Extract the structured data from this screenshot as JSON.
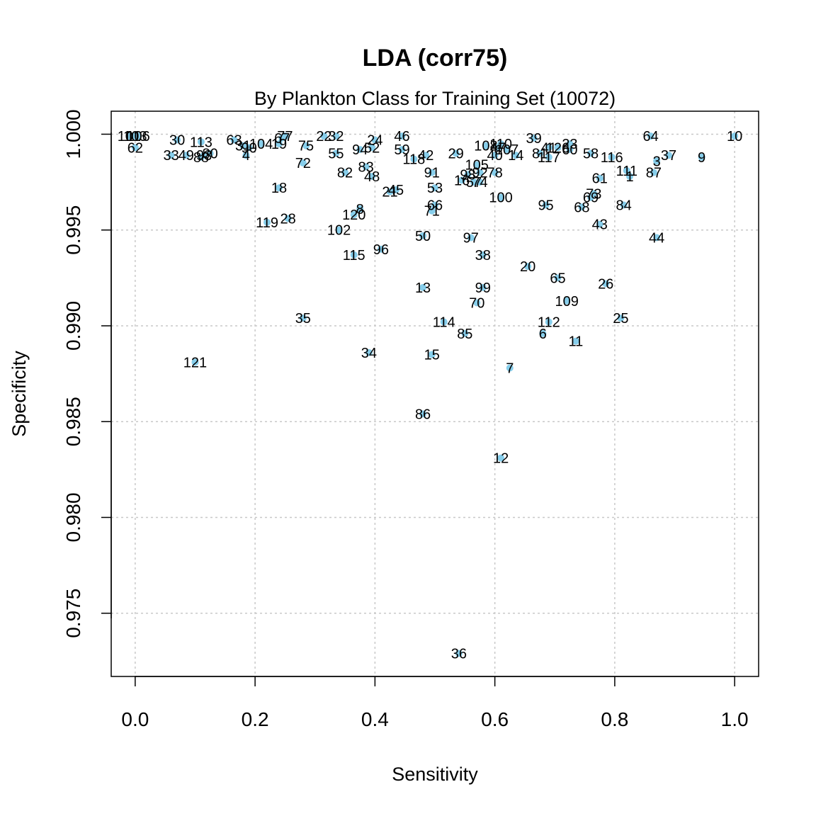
{
  "chart_data": {
    "type": "scatter",
    "title": "LDA (corr75)",
    "subtitle": "By Plankton Class for Training Set (10072)",
    "xlabel": "Sensitivity",
    "ylabel": "Specificity",
    "xlim": [
      -0.04,
      1.04
    ],
    "ylim": [
      0.9717,
      1.0012
    ],
    "xticks": [
      "0.0",
      "0.2",
      "0.4",
      "0.6",
      "0.8",
      "1.0"
    ],
    "xtick_values": [
      0.0,
      0.2,
      0.4,
      0.6,
      0.8,
      1.0
    ],
    "yticks": [
      "0.975",
      "0.980",
      "0.985",
      "0.990",
      "0.995",
      "1.000"
    ],
    "ytick_values": [
      0.975,
      0.98,
      0.985,
      0.99,
      0.995,
      1.0
    ],
    "grid": true,
    "marker_color": "#87CEEB",
    "points": [
      {
        "label": "10",
        "x": 1.0,
        "y": 0.9999
      },
      {
        "label": "9",
        "x": 0.945,
        "y": 0.9988
      },
      {
        "label": "37",
        "x": 0.89,
        "y": 0.9989
      },
      {
        "label": "3",
        "x": 0.87,
        "y": 0.9986
      },
      {
        "label": "64",
        "x": 0.86,
        "y": 0.9999
      },
      {
        "label": "87",
        "x": 0.865,
        "y": 0.998
      },
      {
        "label": "1",
        "x": 0.825,
        "y": 0.9978
      },
      {
        "label": "111",
        "x": 0.82,
        "y": 0.9981
      },
      {
        "label": "116",
        "x": 0.795,
        "y": 0.9988
      },
      {
        "label": "61",
        "x": 0.775,
        "y": 0.9977
      },
      {
        "label": "84",
        "x": 0.815,
        "y": 0.9963
      },
      {
        "label": "44",
        "x": 0.87,
        "y": 0.9946
      },
      {
        "label": "43",
        "x": 0.775,
        "y": 0.9953
      },
      {
        "label": "73",
        "x": 0.765,
        "y": 0.9969
      },
      {
        "label": "69",
        "x": 0.76,
        "y": 0.9967
      },
      {
        "label": "68",
        "x": 0.745,
        "y": 0.9962
      },
      {
        "label": "58",
        "x": 0.76,
        "y": 0.999
      },
      {
        "label": "23",
        "x": 0.725,
        "y": 0.9995
      },
      {
        "label": "60",
        "x": 0.725,
        "y": 0.9992
      },
      {
        "label": "126",
        "x": 0.705,
        "y": 0.9993
      },
      {
        "label": "41",
        "x": 0.69,
        "y": 0.9993
      },
      {
        "label": "117",
        "x": 0.69,
        "y": 0.9988
      },
      {
        "label": "81",
        "x": 0.675,
        "y": 0.999
      },
      {
        "label": "39",
        "x": 0.665,
        "y": 0.9998
      },
      {
        "label": "95",
        "x": 0.685,
        "y": 0.9963
      },
      {
        "label": "65",
        "x": 0.705,
        "y": 0.9925
      },
      {
        "label": "26",
        "x": 0.785,
        "y": 0.9922
      },
      {
        "label": "109",
        "x": 0.72,
        "y": 0.9913
      },
      {
        "label": "25",
        "x": 0.81,
        "y": 0.9904
      },
      {
        "label": "112",
        "x": 0.69,
        "y": 0.9902
      },
      {
        "label": "6",
        "x": 0.68,
        "y": 0.9896
      },
      {
        "label": "11",
        "x": 0.735,
        "y": 0.9892
      },
      {
        "label": "20",
        "x": 0.655,
        "y": 0.9931
      },
      {
        "label": "7",
        "x": 0.625,
        "y": 0.9878
      },
      {
        "label": "12",
        "x": 0.61,
        "y": 0.9831
      },
      {
        "label": "110",
        "x": 0.61,
        "y": 0.9995
      },
      {
        "label": "108",
        "x": 0.585,
        "y": 0.9994
      },
      {
        "label": "47",
        "x": 0.605,
        "y": 0.9993
      },
      {
        "label": "107",
        "x": 0.62,
        "y": 0.9992
      },
      {
        "label": "14",
        "x": 0.635,
        "y": 0.9989
      },
      {
        "label": "40",
        "x": 0.6,
        "y": 0.9989
      },
      {
        "label": "105",
        "x": 0.57,
        "y": 0.9984
      },
      {
        "label": "78",
        "x": 0.6,
        "y": 0.998
      },
      {
        "label": "92",
        "x": 0.575,
        "y": 0.998
      },
      {
        "label": "98",
        "x": 0.555,
        "y": 0.9979
      },
      {
        "label": "57",
        "x": 0.565,
        "y": 0.9975
      },
      {
        "label": "74",
        "x": 0.575,
        "y": 0.9975
      },
      {
        "label": "16",
        "x": 0.545,
        "y": 0.9976
      },
      {
        "label": "100",
        "x": 0.61,
        "y": 0.9967
      },
      {
        "label": "29",
        "x": 0.535,
        "y": 0.999
      },
      {
        "label": "97",
        "x": 0.56,
        "y": 0.9946
      },
      {
        "label": "38",
        "x": 0.58,
        "y": 0.9937
      },
      {
        "label": "99",
        "x": 0.58,
        "y": 0.992
      },
      {
        "label": "70",
        "x": 0.57,
        "y": 0.9912
      },
      {
        "label": "114",
        "x": 0.515,
        "y": 0.9902
      },
      {
        "label": "85",
        "x": 0.55,
        "y": 0.9896
      },
      {
        "label": "36",
        "x": 0.54,
        "y": 0.9729
      },
      {
        "label": "46",
        "x": 0.445,
        "y": 0.9999
      },
      {
        "label": "24",
        "x": 0.4,
        "y": 0.9997
      },
      {
        "label": "52",
        "x": 0.395,
        "y": 0.9993
      },
      {
        "label": "94",
        "x": 0.375,
        "y": 0.9992
      },
      {
        "label": "59",
        "x": 0.445,
        "y": 0.9992
      },
      {
        "label": "42",
        "x": 0.485,
        "y": 0.9989
      },
      {
        "label": "118",
        "x": 0.465,
        "y": 0.9987
      },
      {
        "label": "91",
        "x": 0.495,
        "y": 0.998
      },
      {
        "label": "53",
        "x": 0.5,
        "y": 0.9972
      },
      {
        "label": "66",
        "x": 0.5,
        "y": 0.9963
      },
      {
        "label": "71",
        "x": 0.495,
        "y": 0.996
      },
      {
        "label": "48",
        "x": 0.395,
        "y": 0.9978
      },
      {
        "label": "83",
        "x": 0.385,
        "y": 0.9983
      },
      {
        "label": "21",
        "x": 0.425,
        "y": 0.997
      },
      {
        "label": "45",
        "x": 0.435,
        "y": 0.9971
      },
      {
        "label": "8",
        "x": 0.375,
        "y": 0.9961
      },
      {
        "label": "120",
        "x": 0.365,
        "y": 0.9958
      },
      {
        "label": "50",
        "x": 0.48,
        "y": 0.9947
      },
      {
        "label": "96",
        "x": 0.41,
        "y": 0.994
      },
      {
        "label": "115",
        "x": 0.365,
        "y": 0.9937
      },
      {
        "label": "102",
        "x": 0.34,
        "y": 0.995
      },
      {
        "label": "13",
        "x": 0.48,
        "y": 0.992
      },
      {
        "label": "34",
        "x": 0.39,
        "y": 0.9886
      },
      {
        "label": "15",
        "x": 0.495,
        "y": 0.9885
      },
      {
        "label": "86",
        "x": 0.48,
        "y": 0.9854
      },
      {
        "label": "55",
        "x": 0.335,
        "y": 0.999
      },
      {
        "label": "82",
        "x": 0.35,
        "y": 0.998
      },
      {
        "label": "32",
        "x": 0.335,
        "y": 0.9999
      },
      {
        "label": "22",
        "x": 0.315,
        "y": 0.9999
      },
      {
        "label": "75",
        "x": 0.285,
        "y": 0.9994
      },
      {
        "label": "72",
        "x": 0.28,
        "y": 0.9985
      },
      {
        "label": "35",
        "x": 0.28,
        "y": 0.9904
      },
      {
        "label": "77",
        "x": 0.25,
        "y": 0.9999
      },
      {
        "label": "67",
        "x": 0.245,
        "y": 0.9998
      },
      {
        "label": "19",
        "x": 0.24,
        "y": 0.9995
      },
      {
        "label": "104",
        "x": 0.21,
        "y": 0.9995
      },
      {
        "label": "28",
        "x": 0.255,
        "y": 0.9956
      },
      {
        "label": "119",
        "x": 0.22,
        "y": 0.9954
      },
      {
        "label": "18",
        "x": 0.24,
        "y": 0.9972
      },
      {
        "label": "90",
        "x": 0.19,
        "y": 0.9993
      },
      {
        "label": "4",
        "x": 0.185,
        "y": 0.9989
      },
      {
        "label": "31",
        "x": 0.18,
        "y": 0.9994
      },
      {
        "label": "63",
        "x": 0.165,
        "y": 0.9997
      },
      {
        "label": "113",
        "x": 0.11,
        "y": 0.9996
      },
      {
        "label": "30",
        "x": 0.07,
        "y": 0.9997
      },
      {
        "label": "80",
        "x": 0.125,
        "y": 0.999
      },
      {
        "label": "93",
        "x": 0.115,
        "y": 0.9989
      },
      {
        "label": "88",
        "x": 0.11,
        "y": 0.9988
      },
      {
        "label": "49",
        "x": 0.085,
        "y": 0.9989
      },
      {
        "label": "33",
        "x": 0.06,
        "y": 0.9989
      },
      {
        "label": "121",
        "x": 0.1,
        "y": 0.9881
      },
      {
        "label": "101",
        "x": -0.01,
        "y": 0.9999
      },
      {
        "label": "103",
        "x": 0.0,
        "y": 0.9999
      },
      {
        "label": "106",
        "x": 0.005,
        "y": 0.9999
      },
      {
        "label": "62",
        "x": 0.0,
        "y": 0.9993
      }
    ]
  }
}
